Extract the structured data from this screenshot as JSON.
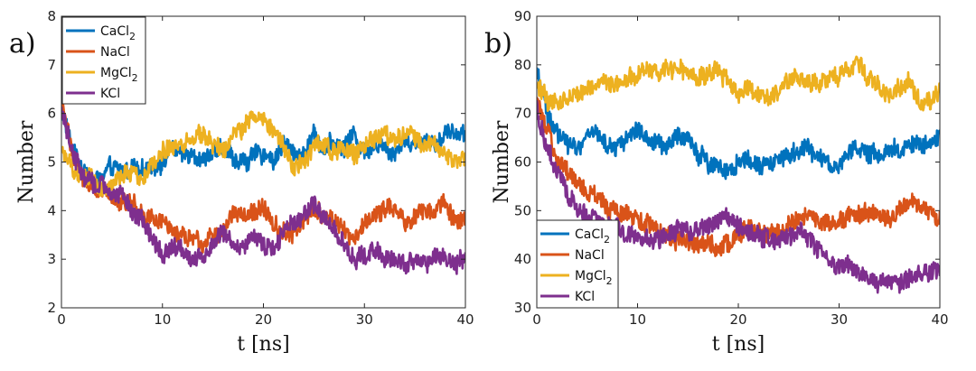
{
  "chart_data": [
    {
      "type": "line",
      "panel_label": "a)",
      "title": "",
      "xlabel": "t [ns]",
      "ylabel": "Number",
      "xlim": [
        0,
        40
      ],
      "ylim": [
        2,
        8
      ],
      "xticks": [
        0,
        10,
        20,
        30,
        40
      ],
      "yticks": [
        2,
        3,
        4,
        5,
        6,
        7,
        8
      ],
      "grid": false,
      "legend_position": "top-left",
      "legend_entries": [
        {
          "base": "CaCl",
          "sub": "2"
        },
        {
          "base": "NaCl",
          "sub": ""
        },
        {
          "base": "MgCl",
          "sub": "2"
        },
        {
          "base": "KCl",
          "sub": ""
        }
      ],
      "series": [
        {
          "name": "CaCl2",
          "color": "#0072BD",
          "x": [
            0,
            1,
            2,
            3,
            4,
            5,
            6,
            7,
            8,
            9,
            10,
            11,
            12,
            13,
            14,
            15,
            16,
            17,
            18,
            19,
            20,
            21,
            22,
            23,
            24,
            25,
            26,
            27,
            28,
            29,
            30,
            31,
            32,
            33,
            34,
            35,
            36,
            37,
            38,
            39,
            40
          ],
          "y": [
            6.1,
            5.3,
            4.9,
            4.6,
            4.7,
            4.9,
            4.8,
            4.9,
            4.8,
            4.9,
            5.0,
            5.3,
            5.1,
            5.2,
            5.0,
            5.2,
            5.3,
            5.1,
            5.0,
            5.1,
            5.2,
            5.0,
            5.4,
            5.2,
            5.1,
            5.6,
            5.3,
            5.4,
            5.3,
            5.6,
            5.2,
            5.4,
            5.3,
            5.2,
            5.5,
            5.3,
            5.5,
            5.4,
            5.6,
            5.6,
            5.6
          ]
        },
        {
          "name": "NaCl",
          "color": "#D95319",
          "x": [
            0,
            1,
            2,
            3,
            4,
            5,
            6,
            7,
            8,
            9,
            10,
            11,
            12,
            13,
            14,
            15,
            16,
            17,
            18,
            19,
            20,
            21,
            22,
            23,
            24,
            25,
            26,
            27,
            28,
            29,
            30,
            31,
            32,
            33,
            34,
            35,
            36,
            37,
            38,
            39,
            40
          ],
          "y": [
            6.3,
            5.2,
            4.7,
            4.5,
            4.4,
            4.3,
            4.2,
            4.2,
            3.9,
            3.8,
            3.8,
            3.6,
            3.5,
            3.4,
            3.3,
            3.5,
            3.6,
            4.0,
            3.9,
            4.0,
            4.1,
            3.7,
            3.6,
            3.5,
            3.8,
            4.0,
            3.9,
            3.8,
            3.6,
            3.4,
            3.8,
            3.9,
            4.0,
            4.1,
            3.8,
            3.9,
            4.0,
            4.0,
            4.1,
            3.8,
            3.8
          ]
        },
        {
          "name": "MgCl2",
          "color": "#EDB120",
          "x": [
            0,
            1,
            2,
            3,
            4,
            5,
            6,
            7,
            8,
            9,
            10,
            11,
            12,
            13,
            14,
            15,
            16,
            17,
            18,
            19,
            20,
            21,
            22,
            23,
            24,
            25,
            26,
            27,
            28,
            29,
            30,
            31,
            32,
            33,
            34,
            35,
            36,
            37,
            38,
            39,
            40
          ],
          "y": [
            5.3,
            4.9,
            4.6,
            4.7,
            4.4,
            4.6,
            4.7,
            4.8,
            4.6,
            5.0,
            5.2,
            5.3,
            5.4,
            5.5,
            5.6,
            5.4,
            5.2,
            5.5,
            5.7,
            6.0,
            5.8,
            5.6,
            5.4,
            4.9,
            5.0,
            5.3,
            5.4,
            5.2,
            5.3,
            5.1,
            5.4,
            5.5,
            5.6,
            5.4,
            5.6,
            5.5,
            5.3,
            5.4,
            5.1,
            5.0,
            5.1
          ]
        },
        {
          "name": "KCl",
          "color": "#7E2F8E",
          "x": [
            0,
            1,
            2,
            3,
            4,
            5,
            6,
            7,
            8,
            9,
            10,
            11,
            12,
            13,
            14,
            15,
            16,
            17,
            18,
            19,
            20,
            21,
            22,
            23,
            24,
            25,
            26,
            27,
            28,
            29,
            30,
            31,
            32,
            33,
            34,
            35,
            36,
            37,
            38,
            39,
            40
          ],
          "y": [
            6.0,
            5.3,
            4.8,
            4.6,
            4.5,
            4.4,
            4.3,
            4.0,
            3.8,
            3.4,
            3.1,
            3.3,
            3.2,
            3.0,
            3.1,
            3.3,
            3.5,
            3.4,
            3.2,
            3.5,
            3.3,
            3.2,
            3.6,
            3.8,
            3.9,
            4.1,
            3.9,
            3.6,
            3.3,
            3.0,
            3.1,
            3.2,
            3.0,
            3.0,
            2.9,
            3.0,
            2.9,
            3.1,
            3.0,
            2.9,
            3.0
          ]
        }
      ]
    },
    {
      "type": "line",
      "panel_label": "b)",
      "title": "",
      "xlabel": "t [ns]",
      "ylabel": "Number",
      "xlim": [
        0,
        40
      ],
      "ylim": [
        30,
        90
      ],
      "xticks": [
        0,
        10,
        20,
        30,
        40
      ],
      "yticks": [
        30,
        40,
        50,
        60,
        70,
        80,
        90
      ],
      "grid": false,
      "legend_position": "bottom-left",
      "legend_entries": [
        {
          "base": "CaCl",
          "sub": "2"
        },
        {
          "base": "NaCl",
          "sub": ""
        },
        {
          "base": "MgCl",
          "sub": "2"
        },
        {
          "base": "KCl",
          "sub": ""
        }
      ],
      "series": [
        {
          "name": "CaCl2",
          "color": "#0072BD",
          "x": [
            0,
            1,
            2,
            3,
            4,
            5,
            6,
            7,
            8,
            9,
            10,
            11,
            12,
            13,
            14,
            15,
            16,
            17,
            18,
            19,
            20,
            21,
            22,
            23,
            24,
            25,
            26,
            27,
            28,
            29,
            30,
            31,
            32,
            33,
            34,
            35,
            36,
            37,
            38,
            39,
            40
          ],
          "y": [
            80,
            70,
            66,
            64,
            63,
            65,
            66,
            64,
            63,
            65,
            67,
            65,
            64,
            63,
            66,
            65,
            62,
            60,
            59,
            58,
            60,
            61,
            59,
            60,
            60,
            61,
            62,
            63,
            61,
            60,
            59,
            62,
            63,
            62,
            61,
            63,
            62,
            64,
            63,
            64,
            65
          ]
        },
        {
          "name": "NaCl",
          "color": "#D95319",
          "x": [
            0,
            1,
            2,
            3,
            4,
            5,
            6,
            7,
            8,
            9,
            10,
            11,
            12,
            13,
            14,
            15,
            16,
            17,
            18,
            19,
            20,
            21,
            22,
            23,
            24,
            25,
            26,
            27,
            28,
            29,
            30,
            31,
            32,
            33,
            34,
            35,
            36,
            37,
            38,
            39,
            40
          ],
          "y": [
            72,
            66,
            61,
            58,
            56,
            54,
            53,
            51,
            50,
            49,
            48,
            47,
            46,
            45,
            44,
            44,
            43,
            43,
            42,
            43,
            45,
            47,
            46,
            45,
            46,
            47,
            48,
            49,
            48,
            47,
            48,
            49,
            49,
            50,
            49,
            48,
            50,
            52,
            51,
            50,
            48
          ]
        },
        {
          "name": "MgCl2",
          "color": "#EDB120",
          "x": [
            0,
            1,
            2,
            3,
            4,
            5,
            6,
            7,
            8,
            9,
            10,
            11,
            12,
            13,
            14,
            15,
            16,
            17,
            18,
            19,
            20,
            21,
            22,
            23,
            24,
            25,
            26,
            27,
            28,
            29,
            30,
            31,
            32,
            33,
            34,
            35,
            36,
            37,
            38,
            39,
            40
          ],
          "y": [
            76,
            73,
            72,
            73,
            74,
            75,
            76,
            77,
            76,
            77,
            78,
            79,
            78,
            80,
            79,
            78,
            77,
            78,
            79,
            76,
            74,
            75,
            74,
            73,
            75,
            77,
            78,
            77,
            76,
            77,
            78,
            79,
            80,
            77,
            76,
            74,
            75,
            76,
            72,
            73,
            74
          ]
        },
        {
          "name": "KCl",
          "color": "#7E2F8E",
          "x": [
            0,
            1,
            2,
            3,
            4,
            5,
            6,
            7,
            8,
            9,
            10,
            11,
            12,
            13,
            14,
            15,
            16,
            17,
            18,
            19,
            20,
            21,
            22,
            23,
            24,
            25,
            26,
            27,
            28,
            29,
            30,
            31,
            32,
            33,
            34,
            35,
            36,
            37,
            38,
            39,
            40
          ],
          "y": [
            71,
            63,
            58,
            54,
            51,
            49,
            48,
            47,
            46,
            45,
            45,
            44,
            44,
            45,
            46,
            45,
            46,
            47,
            48,
            49,
            47,
            46,
            45,
            44,
            44,
            45,
            46,
            44,
            42,
            40,
            38,
            39,
            37,
            36,
            35,
            36,
            35,
            36,
            37,
            37,
            38
          ]
        }
      ]
    }
  ]
}
